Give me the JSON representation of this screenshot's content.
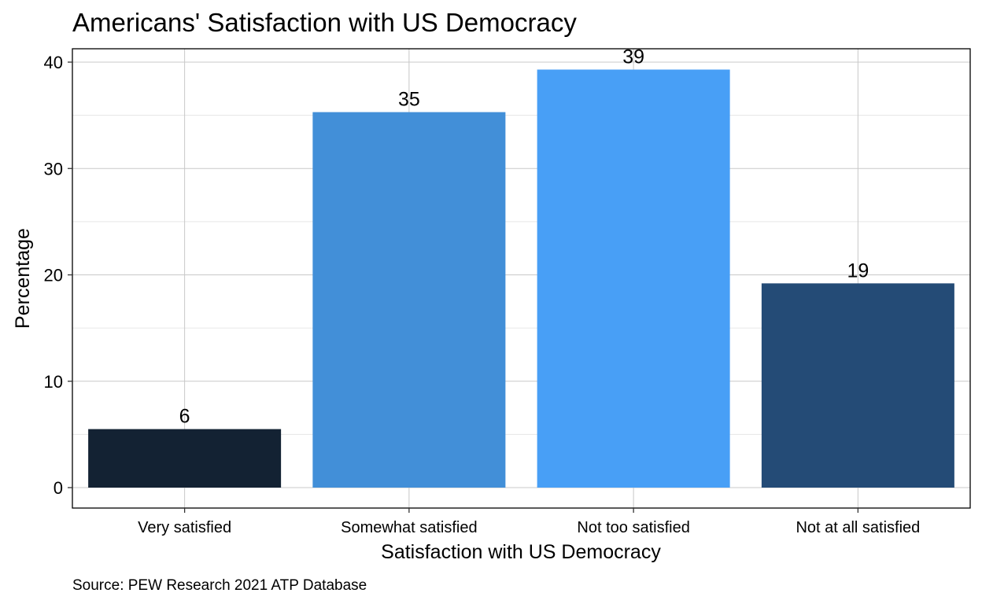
{
  "chart_data": {
    "type": "bar",
    "title": "Americans' Satisfaction with US Democracy",
    "xlabel": "Satisfaction with US Democracy",
    "ylabel": "Percentage",
    "caption": "Source: PEW Research 2021 ATP Database",
    "categories": [
      "Very satisfied",
      "Somewhat satisfied",
      "Not too satisfied",
      "Not at all satisfied"
    ],
    "values": [
      5.5,
      35.3,
      39.3,
      19.2
    ],
    "data_labels": [
      "6",
      "35",
      "39",
      "19"
    ],
    "colors": [
      "#132233",
      "#428FD8",
      "#489FF6",
      "#244B76"
    ],
    "yticks": [
      0,
      10,
      20,
      30,
      40
    ],
    "ytick_labels": [
      "0",
      "10",
      "20",
      "30",
      "40"
    ],
    "ylim": [
      -1.9,
      41.3
    ],
    "grid": true,
    "legend": "none"
  }
}
